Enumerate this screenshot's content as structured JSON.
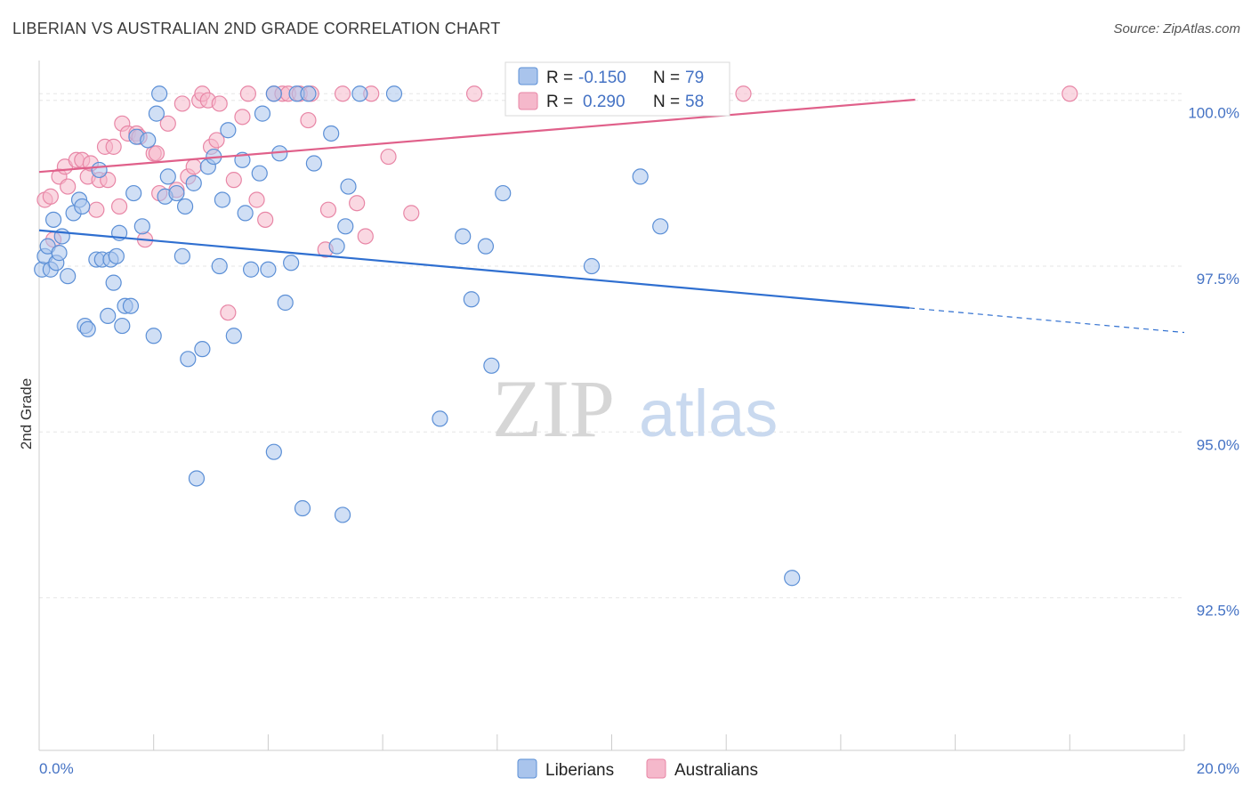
{
  "title": "LIBERIAN VS AUSTRALIAN 2ND GRADE CORRELATION CHART",
  "source": "Source: ZipAtlas.com",
  "watermark": {
    "zip": "ZIP",
    "atlas": "atlas"
  },
  "colors": {
    "liberian_fill": "#a9c4ec",
    "liberian_stroke": "#5b8fd6",
    "liberian_line": "#2f6fd0",
    "australian_fill": "#f5b8cb",
    "australian_stroke": "#e886a6",
    "australian_line": "#e0608a",
    "tick_label": "#4472c4",
    "grid": "#e6e6e6"
  },
  "legend": {
    "liberians": {
      "r_label": "R =",
      "r_value": "-0.150",
      "n_label": "N =",
      "n_value": "79"
    },
    "australians": {
      "r_label": "R =",
      "r_value": "0.290",
      "n_label": "N =",
      "n_value": "58"
    }
  },
  "chart_data": {
    "type": "scatter",
    "xlim": [
      0,
      20
    ],
    "ylim": [
      90.2,
      100.6
    ],
    "ylabel": "2nd Grade",
    "x_tick_labels": [
      "0.0%",
      "20.0%"
    ],
    "y_ticks": [
      {
        "value": 100.0,
        "label": "100.0%"
      },
      {
        "value": 97.5,
        "label": "97.5%"
      },
      {
        "value": 95.0,
        "label": "95.0%"
      },
      {
        "value": 92.5,
        "label": "92.5%"
      }
    ],
    "grid": true,
    "series": [
      {
        "name": "Liberians",
        "trend": {
          "x": [
            0,
            15.2
          ],
          "y": [
            98.04,
            96.87
          ],
          "dashed_to_x": 20,
          "dashed_to_y": 96.5
        },
        "points": [
          [
            0.05,
            97.45
          ],
          [
            0.1,
            97.65
          ],
          [
            0.15,
            97.8
          ],
          [
            0.2,
            97.45
          ],
          [
            0.25,
            98.2
          ],
          [
            0.3,
            97.55
          ],
          [
            0.35,
            97.7
          ],
          [
            0.4,
            97.95
          ],
          [
            0.5,
            97.35
          ],
          [
            0.6,
            98.3
          ],
          [
            0.7,
            98.5
          ],
          [
            0.75,
            98.4
          ],
          [
            0.8,
            96.6
          ],
          [
            0.85,
            96.55
          ],
          [
            1.0,
            97.6
          ],
          [
            1.05,
            98.95
          ],
          [
            1.1,
            97.6
          ],
          [
            1.2,
            96.75
          ],
          [
            1.25,
            97.6
          ],
          [
            1.3,
            97.25
          ],
          [
            1.35,
            97.65
          ],
          [
            1.4,
            98.0
          ],
          [
            1.45,
            96.6
          ],
          [
            1.5,
            96.9
          ],
          [
            1.6,
            96.9
          ],
          [
            1.65,
            98.6
          ],
          [
            1.7,
            99.45
          ],
          [
            1.8,
            98.1
          ],
          [
            1.9,
            99.4
          ],
          [
            2.0,
            96.45
          ],
          [
            2.05,
            99.8
          ],
          [
            2.1,
            100.1
          ],
          [
            2.2,
            98.55
          ],
          [
            2.25,
            98.85
          ],
          [
            2.4,
            98.6
          ],
          [
            2.5,
            97.65
          ],
          [
            2.55,
            98.4
          ],
          [
            2.6,
            96.1
          ],
          [
            2.7,
            98.75
          ],
          [
            2.75,
            94.3
          ],
          [
            2.85,
            96.25
          ],
          [
            2.95,
            99.0
          ],
          [
            3.05,
            99.15
          ],
          [
            3.15,
            97.5
          ],
          [
            3.2,
            98.5
          ],
          [
            3.3,
            99.55
          ],
          [
            3.4,
            96.45
          ],
          [
            3.55,
            99.1
          ],
          [
            3.6,
            98.3
          ],
          [
            3.7,
            97.45
          ],
          [
            3.85,
            98.9
          ],
          [
            3.9,
            99.8
          ],
          [
            4.0,
            97.45
          ],
          [
            4.1,
            100.1
          ],
          [
            4.1,
            94.7
          ],
          [
            4.2,
            99.2
          ],
          [
            4.3,
            96.95
          ],
          [
            4.4,
            97.55
          ],
          [
            4.5,
            100.1
          ],
          [
            4.6,
            93.85
          ],
          [
            4.7,
            100.1
          ],
          [
            4.8,
            99.05
          ],
          [
            5.1,
            99.5
          ],
          [
            5.2,
            97.8
          ],
          [
            5.3,
            93.75
          ],
          [
            5.35,
            98.1
          ],
          [
            5.4,
            98.7
          ],
          [
            5.6,
            100.1
          ],
          [
            6.2,
            100.1
          ],
          [
            7.0,
            95.2
          ],
          [
            7.4,
            97.95
          ],
          [
            7.55,
            97.0
          ],
          [
            7.8,
            97.8
          ],
          [
            7.9,
            96.0
          ],
          [
            8.1,
            98.6
          ],
          [
            9.65,
            97.5
          ],
          [
            10.5,
            98.85
          ],
          [
            10.85,
            98.1
          ],
          [
            13.15,
            92.8
          ]
        ]
      },
      {
        "name": "Australians",
        "trend": {
          "x": [
            0,
            15.3
          ],
          "y": [
            98.92,
            100.01
          ]
        },
        "points": [
          [
            0.1,
            98.5
          ],
          [
            0.2,
            98.55
          ],
          [
            0.25,
            97.9
          ],
          [
            0.35,
            98.85
          ],
          [
            0.45,
            99.0
          ],
          [
            0.5,
            98.7
          ],
          [
            0.65,
            99.1
          ],
          [
            0.75,
            99.1
          ],
          [
            0.85,
            98.85
          ],
          [
            0.9,
            99.05
          ],
          [
            1.0,
            98.35
          ],
          [
            1.05,
            98.8
          ],
          [
            1.15,
            99.3
          ],
          [
            1.2,
            98.8
          ],
          [
            1.3,
            99.3
          ],
          [
            1.4,
            98.4
          ],
          [
            1.45,
            99.65
          ],
          [
            1.55,
            99.5
          ],
          [
            1.7,
            99.5
          ],
          [
            1.75,
            99.45
          ],
          [
            1.85,
            97.9
          ],
          [
            2.0,
            99.2
          ],
          [
            2.05,
            99.2
          ],
          [
            2.1,
            98.6
          ],
          [
            2.25,
            99.65
          ],
          [
            2.4,
            98.65
          ],
          [
            2.5,
            99.95
          ],
          [
            2.6,
            98.85
          ],
          [
            2.7,
            99.0
          ],
          [
            2.8,
            100.0
          ],
          [
            2.85,
            100.1
          ],
          [
            2.95,
            100.0
          ],
          [
            3.0,
            99.3
          ],
          [
            3.1,
            99.4
          ],
          [
            3.15,
            99.95
          ],
          [
            3.3,
            96.8
          ],
          [
            3.4,
            98.8
          ],
          [
            3.55,
            99.75
          ],
          [
            3.65,
            100.1
          ],
          [
            3.8,
            98.5
          ],
          [
            3.95,
            98.2
          ],
          [
            4.1,
            100.1
          ],
          [
            4.25,
            100.1
          ],
          [
            4.35,
            100.1
          ],
          [
            4.55,
            100.1
          ],
          [
            4.7,
            99.7
          ],
          [
            4.75,
            100.1
          ],
          [
            5.0,
            97.75
          ],
          [
            5.05,
            98.35
          ],
          [
            5.3,
            100.1
          ],
          [
            5.55,
            98.45
          ],
          [
            5.7,
            97.95
          ],
          [
            5.8,
            100.1
          ],
          [
            6.1,
            99.15
          ],
          [
            6.5,
            98.3
          ],
          [
            7.6,
            100.1
          ],
          [
            12.3,
            100.1
          ],
          [
            18.0,
            100.1
          ]
        ]
      }
    ]
  },
  "bottom_legend": {
    "liberians": "Liberians",
    "australians": "Australians"
  }
}
